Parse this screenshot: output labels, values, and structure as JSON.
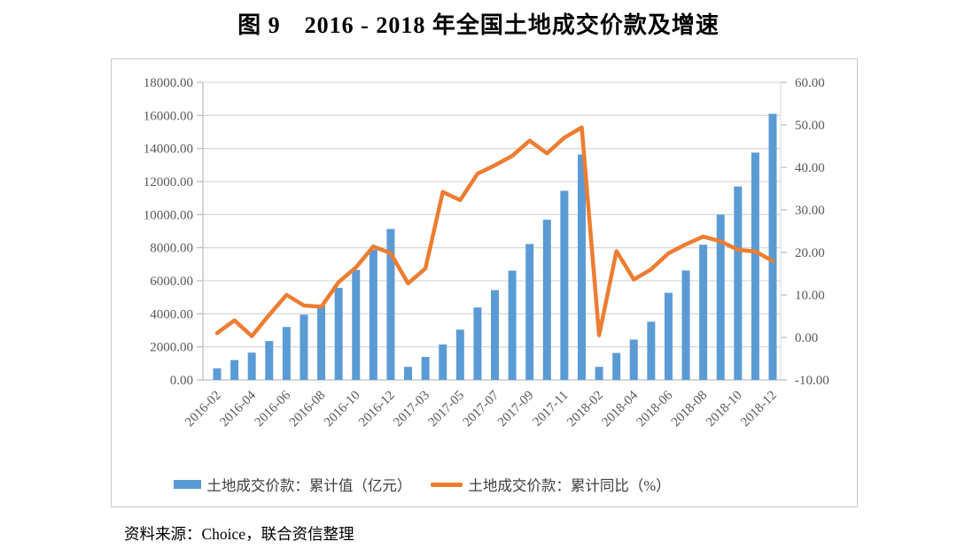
{
  "title": "图 9　2016 - 2018 年全国土地成交价款及增速",
  "source_note": "资料来源：Choice，联合资信整理",
  "colors": {
    "bar": "#5B9BD5",
    "line": "#ED7D31",
    "gridline": "#dadada",
    "axis_line": "#bdbdbd",
    "tick": "#bdbdbd",
    "axis_label": "#595959",
    "frame_border": "#c9c9c9"
  },
  "chart_data": {
    "type": "bar",
    "combo": "bar + line (dual axis)",
    "title": "图 9　2016 - 2018 年全国土地成交价款及增速",
    "categories": [
      "2016-02",
      "2016-03",
      "2016-04",
      "2016-05",
      "2016-06",
      "2016-07",
      "2016-08",
      "2016-09",
      "2016-10",
      "2016-11",
      "2016-12",
      "2017-02",
      "2017-03",
      "2017-04",
      "2017-05",
      "2017-06",
      "2017-07",
      "2017-08",
      "2017-09",
      "2017-10",
      "2017-11",
      "2017-12",
      "2018-02",
      "2018-03",
      "2018-04",
      "2018-05",
      "2018-06",
      "2018-07",
      "2018-08",
      "2018-09",
      "2018-10",
      "2018-11",
      "2018-12"
    ],
    "series": [
      {
        "name": "土地成交价款：累计值（亿元）",
        "type": "bar",
        "axis": "left",
        "color": "#5B9BD5",
        "values": [
          700,
          1200,
          1650,
          2350,
          3200,
          3950,
          4500,
          5570,
          6650,
          7890,
          9130,
          790,
          1390,
          2140,
          3040,
          4380,
          5430,
          6610,
          8220,
          9690,
          11440,
          13640,
          790,
          1630,
          2440,
          3520,
          5270,
          6620,
          8180,
          10000,
          11700,
          13750,
          16100
        ]
      },
      {
        "name": "土地成交价款：累计同比（%）",
        "type": "line",
        "axis": "right",
        "color": "#ED7D31",
        "values": [
          1.0,
          4.0,
          0.3,
          5.3,
          10.0,
          7.5,
          7.2,
          13.0,
          16.5,
          21.4,
          19.8,
          12.7,
          16.2,
          34.2,
          32.3,
          38.5,
          40.5,
          42.7,
          46.3,
          43.3,
          47.0,
          49.4,
          0.5,
          20.3,
          13.6,
          16.0,
          19.8,
          21.9,
          23.7,
          22.6,
          20.6,
          20.2,
          18.0
        ]
      }
    ],
    "left_axis": {
      "min": 0,
      "max": 18000,
      "tick_labels": [
        "0.00",
        "2000.00",
        "4000.00",
        "6000.00",
        "8000.00",
        "10000.00",
        "12000.00",
        "14000.00",
        "16000.00",
        "18000.00"
      ]
    },
    "right_axis": {
      "min": -10,
      "max": 60,
      "tick_labels": [
        "-10.00",
        "0.00",
        "10.00",
        "20.00",
        "30.00",
        "40.00",
        "50.00",
        "60.00"
      ]
    },
    "x_tick_labels": [
      "2016-02",
      "2016-04",
      "2016-06",
      "2016-08",
      "2016-10",
      "2016-12",
      "2017-03",
      "2017-05",
      "2017-07",
      "2017-09",
      "2017-11",
      "2018-02",
      "2018-04",
      "2018-06",
      "2018-08",
      "2018-10",
      "2018-12"
    ],
    "x_label_rotation_deg": 45,
    "grid": true,
    "legend_position": "bottom"
  }
}
